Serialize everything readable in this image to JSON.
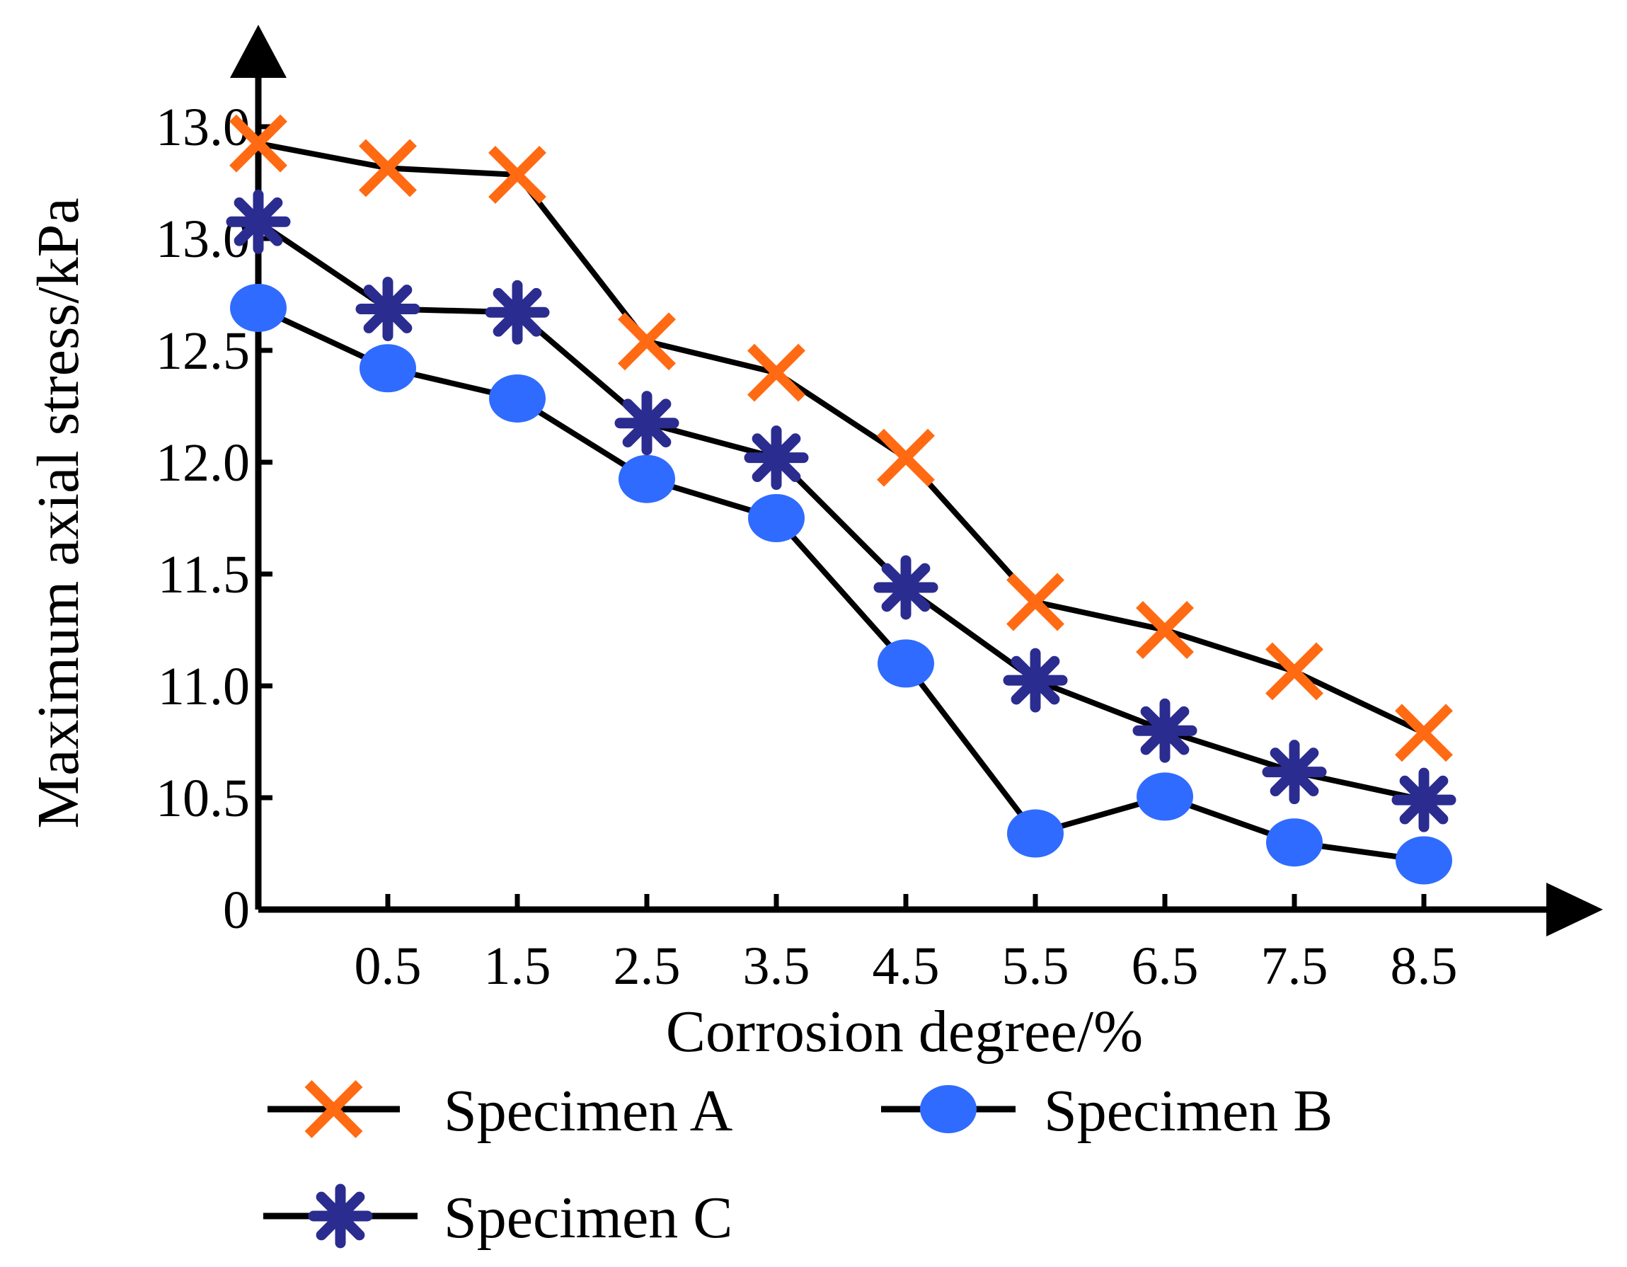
{
  "chart_data": {
    "type": "line",
    "title": "",
    "xlabel": "Corrosion degree/%",
    "ylabel": "Maximum axial stress/kPa",
    "categories": [
      "0",
      "0.5",
      "1.5",
      "2.5",
      "3.5",
      "4.5",
      "5.5",
      "6.5",
      "7.5",
      "8.5"
    ],
    "x_tick_labels": [
      "0.5",
      "1.5",
      "2.5",
      "3.5",
      "4.5",
      "5.5",
      "6.5",
      "7.5",
      "8.5"
    ],
    "y_tick_labels": [
      "0",
      "10.5",
      "11.0",
      "11.5",
      "12.0",
      "12.5",
      "13.0",
      "13.0"
    ],
    "y_tick_positions": [
      0,
      1,
      2,
      3,
      4,
      5,
      6,
      7
    ],
    "ylim": [
      0,
      7.3
    ],
    "series": [
      {
        "name": "Specimen A",
        "marker": "cross",
        "color": "#ff6a13",
        "values": [
          6.85,
          6.63,
          6.57,
          5.08,
          4.8,
          4.04,
          2.75,
          2.5,
          2.13,
          1.58
        ]
      },
      {
        "name": "Specimen B",
        "marker": "circle",
        "color": "#2f6bff",
        "values": [
          5.38,
          4.84,
          4.57,
          3.85,
          3.5,
          2.2,
          0.68,
          1.01,
          0.6,
          0.44
        ]
      },
      {
        "name": "Specimen C",
        "marker": "asterisk",
        "color": "#2b2c8f",
        "values": [
          6.15,
          5.37,
          5.34,
          4.35,
          4.04,
          2.88,
          2.05,
          1.6,
          1.23,
          0.98
        ]
      }
    ],
    "legend": {
      "position": "bottom"
    },
    "grid": false
  },
  "colors": {
    "axis": "#000000",
    "line": "#000000"
  }
}
